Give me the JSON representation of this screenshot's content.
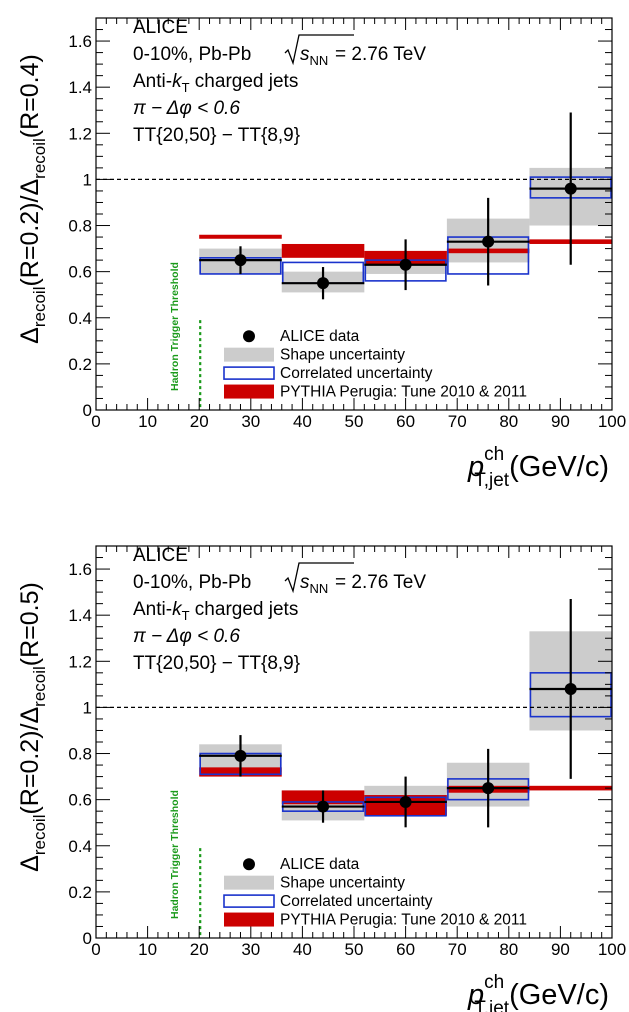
{
  "chart_data": [
    {
      "type": "bar",
      "experiment": "ALICE",
      "info_lines": [
        "0-10%, Pb-Pb",
        "= 2.76 TeV",
        "Anti-",
        "charged jets",
        "π − Δφ < 0.6",
        "TT{20,50} − TT{8,9}"
      ],
      "sqrt_s_symbol": "s",
      "sqrt_s_sub": "NN",
      "kt_symbol": "k",
      "kt_sub": "T",
      "ylabel": {
        "delta": "Δ",
        "num_sub": "recoil",
        "num_arg": "(R=0.2)/",
        "den_sub": "recoil",
        "den_arg": "(R=0.4)"
      },
      "xlabel": {
        "p": "p",
        "sup": "ch",
        "sub": "T,jet",
        "unit": "(GeV/c)"
      },
      "xlim": [
        0,
        100
      ],
      "ylim": [
        0,
        1.7
      ],
      "xticks": [
        "0",
        "10",
        "20",
        "30",
        "40",
        "50",
        "60",
        "70",
        "80",
        "90",
        "100"
      ],
      "yticks": [
        "0",
        "0.2",
        "0.4",
        "0.6",
        "0.8",
        "1",
        "1.2",
        "1.4",
        "1.6"
      ],
      "threshold_label": "Hadron Trigger Threshold",
      "threshold_x": 20,
      "reference_line_y": 1,
      "bins": [
        [
          20,
          36
        ],
        [
          36,
          52
        ],
        [
          52,
          68
        ],
        [
          68,
          84
        ],
        [
          84,
          100
        ]
      ],
      "data": [
        {
          "x": 28,
          "y": 0.65,
          "stat": 0.06,
          "shape": [
            0.59,
            0.7
          ],
          "corr": [
            0.59,
            0.66
          ]
        },
        {
          "x": 44,
          "y": 0.55,
          "stat": 0.07,
          "shape": [
            0.51,
            0.6
          ],
          "corr": [
            0.55,
            0.64
          ]
        },
        {
          "x": 60,
          "y": 0.63,
          "stat": 0.11,
          "shape": [
            0.59,
            0.66
          ],
          "corr": [
            0.56,
            0.65
          ]
        },
        {
          "x": 76,
          "y": 0.73,
          "stat": 0.19,
          "shape": [
            0.64,
            0.83
          ],
          "corr": [
            0.59,
            0.75
          ]
        },
        {
          "x": 92,
          "y": 0.96,
          "stat": 0.33,
          "shape": [
            0.8,
            1.05
          ],
          "corr": [
            0.92,
            1.01
          ]
        }
      ],
      "pythia": [
        {
          "bin": [
            20,
            36
          ],
          "y": [
            0.75,
            0.76
          ]
        },
        {
          "bin": [
            36,
            52
          ],
          "y": [
            0.66,
            0.72
          ]
        },
        {
          "bin": [
            52,
            68
          ],
          "y": [
            0.63,
            0.69
          ]
        },
        {
          "bin": [
            68,
            84
          ],
          "y": [
            0.68,
            0.7
          ]
        },
        {
          "bin": [
            84,
            100
          ],
          "y": [
            0.72,
            0.74
          ]
        }
      ],
      "legend": [
        "ALICE data",
        "Shape uncertainty",
        "Correlated uncertainty",
        "PYTHIA Perugia: Tune 2010 & 2011"
      ],
      "colors": {
        "shape": "#cccccc",
        "corr": "#1a33cc",
        "pythia": "#cc0000",
        "threshold": "#1a9a1a"
      }
    },
    {
      "type": "bar",
      "experiment": "ALICE",
      "info_lines": [
        "0-10%, Pb-Pb",
        "= 2.76 TeV",
        "Anti-",
        "charged jets",
        "π − Δφ < 0.6",
        "TT{20,50} − TT{8,9}"
      ],
      "sqrt_s_symbol": "s",
      "sqrt_s_sub": "NN",
      "kt_symbol": "k",
      "kt_sub": "T",
      "ylabel": {
        "delta": "Δ",
        "num_sub": "recoil",
        "num_arg": "(R=0.2)/",
        "den_sub": "recoil",
        "den_arg": "(R=0.5)"
      },
      "xlabel": {
        "p": "p",
        "sup": "ch",
        "sub": "T,jet",
        "unit": "(GeV/c)"
      },
      "xlim": [
        0,
        100
      ],
      "ylim": [
        0,
        1.7
      ],
      "xticks": [
        "0",
        "10",
        "20",
        "30",
        "40",
        "50",
        "60",
        "70",
        "80",
        "90",
        "100"
      ],
      "yticks": [
        "0",
        "0.2",
        "0.4",
        "0.6",
        "0.8",
        "1",
        "1.2",
        "1.4",
        "1.6"
      ],
      "threshold_label": "Hadron Trigger Threshold",
      "threshold_x": 20,
      "reference_line_y": 1,
      "bins": [
        [
          20,
          36
        ],
        [
          36,
          52
        ],
        [
          52,
          68
        ],
        [
          68,
          84
        ],
        [
          84,
          100
        ]
      ],
      "data": [
        {
          "x": 28,
          "y": 0.79,
          "stat": 0.09,
          "shape": [
            0.72,
            0.84
          ],
          "corr": [
            0.71,
            0.8
          ]
        },
        {
          "x": 44,
          "y": 0.57,
          "stat": 0.07,
          "shape": [
            0.51,
            0.64
          ],
          "corr": [
            0.55,
            0.59
          ]
        },
        {
          "x": 60,
          "y": 0.59,
          "stat": 0.11,
          "shape": [
            0.53,
            0.66
          ],
          "corr": [
            0.53,
            0.61
          ]
        },
        {
          "x": 76,
          "y": 0.65,
          "stat": 0.17,
          "shape": [
            0.57,
            0.76
          ],
          "corr": [
            0.6,
            0.69
          ]
        },
        {
          "x": 92,
          "y": 1.08,
          "stat": 0.39,
          "shape": [
            0.9,
            1.33
          ],
          "corr": [
            0.96,
            1.15
          ]
        }
      ],
      "pythia": [
        {
          "bin": [
            20,
            36
          ],
          "y": [
            0.7,
            0.74
          ]
        },
        {
          "bin": [
            36,
            52
          ],
          "y": [
            0.58,
            0.64
          ]
        },
        {
          "bin": [
            52,
            68
          ],
          "y": [
            0.53,
            0.62
          ]
        },
        {
          "bin": [
            68,
            84
          ],
          "y": [
            0.63,
            0.66
          ]
        },
        {
          "bin": [
            84,
            100
          ],
          "y": [
            0.64,
            0.66
          ]
        }
      ],
      "legend": [
        "ALICE data",
        "Shape uncertainty",
        "Correlated uncertainty",
        "PYTHIA Perugia: Tune 2010 & 2011"
      ],
      "colors": {
        "shape": "#cccccc",
        "corr": "#1a33cc",
        "pythia": "#cc0000",
        "threshold": "#1a9a1a"
      }
    }
  ]
}
